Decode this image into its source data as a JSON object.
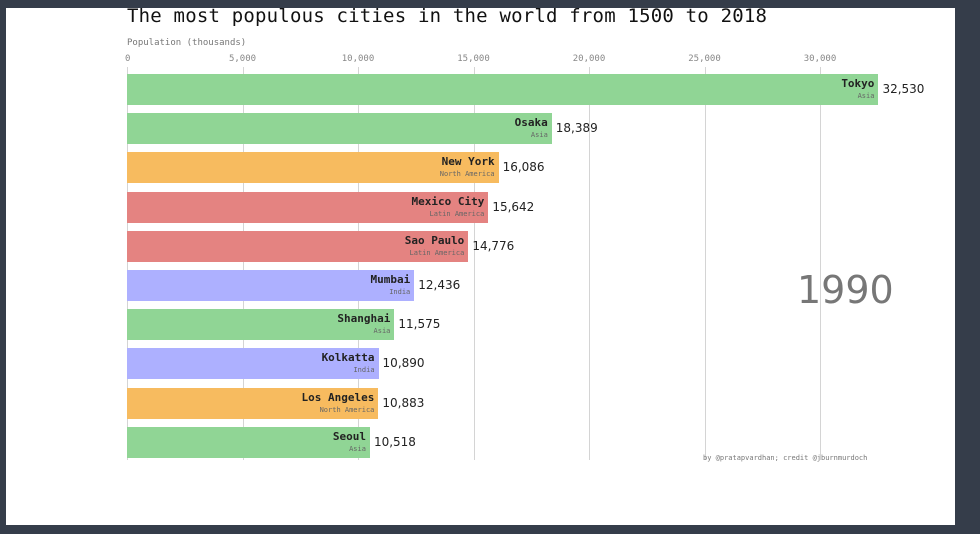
{
  "chart_data": {
    "type": "bar",
    "orientation": "horizontal",
    "title": "The most populous cities in the world from 1500 to 2018",
    "xlabel": "Population (thousands)",
    "ylabel": "",
    "xlim": [
      0,
      32530
    ],
    "xticks": [
      "0",
      "5,000",
      "10,000",
      "15,000",
      "20,000",
      "25,000",
      "30,000"
    ],
    "grid": true,
    "year": "1990",
    "categories": [
      "Tokyo",
      "Osaka",
      "New York",
      "Mexico City",
      "Sao Paulo",
      "Mumbai",
      "Shanghai",
      "Kolkatta",
      "Los Angeles",
      "Seoul"
    ],
    "regions": [
      "Asia",
      "Asia",
      "North America",
      "Latin America",
      "Latin America",
      "India",
      "Asia",
      "India",
      "North America",
      "Asia"
    ],
    "values": [
      32530,
      18389,
      16086,
      15642,
      14776,
      12436,
      11575,
      10890,
      10883,
      10518
    ],
    "value_labels": [
      "32,530",
      "18,389",
      "16,086",
      "15,642",
      "14,776",
      "12,436",
      "11,575",
      "10,890",
      "10,883",
      "10,518"
    ],
    "region_colors": {
      "Asia": "#90d595",
      "North America": "#f7bb5f",
      "Latin America": "#e48381",
      "India": "#adb0ff"
    },
    "credit": "by @pratapvardhan; credit @jburnmurdoch"
  }
}
